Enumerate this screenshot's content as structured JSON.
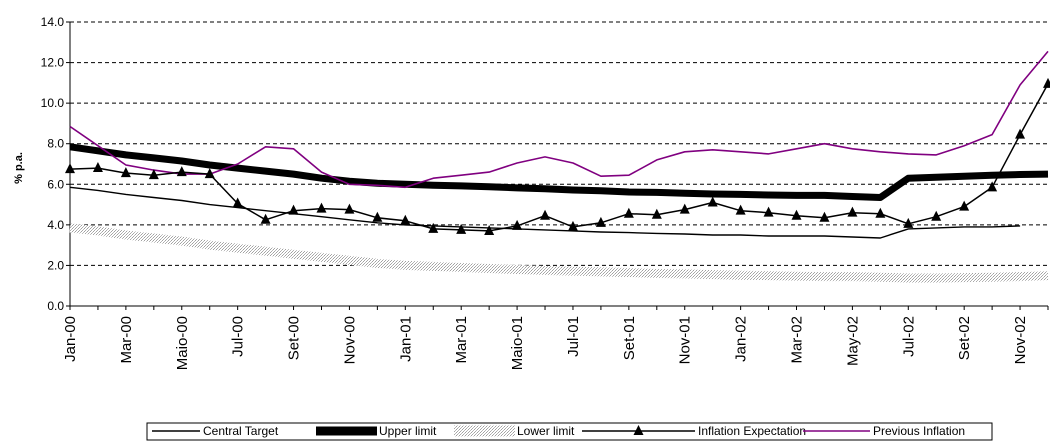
{
  "chart_data": {
    "type": "line",
    "title": "",
    "xlabel": "",
    "ylabel": "% p.a.",
    "ylim": [
      0,
      14
    ],
    "yticks": [
      "0.0",
      "2.0",
      "4.0",
      "6.0",
      "8.0",
      "10.0",
      "12.0",
      "14.0"
    ],
    "grid": "horizontal-dashed",
    "legend_position": "bottom",
    "x": [
      "Jan-00",
      "Feb-00",
      "Mar-00",
      "Abr-00",
      "Maio-00",
      "Jun-00",
      "Jul-00",
      "Ago-00",
      "Set-00",
      "Out-00",
      "Nov-00",
      "Dez-00",
      "Jan-01",
      "Feb-01",
      "Mar-01",
      "Abr-01",
      "Maio-01",
      "Jun-01",
      "Jul-01",
      "Ago-01",
      "Set-01",
      "Out-01",
      "Nov-01",
      "Dez-01",
      "Jan-02",
      "Feb-02",
      "Mar-02",
      "Abr-02",
      "May-02",
      "Jun-02",
      "Jul-02",
      "Ago-02",
      "Set-02",
      "Out-02",
      "Nov-02",
      "Dez-02"
    ],
    "x_tick_labels": [
      "Jan-00",
      "Mar-00",
      "Maio-00",
      "Jul-00",
      "Set-00",
      "Nov-00",
      "Jan-01",
      "Mar-01",
      "Maio-01",
      "Jul-01",
      "Set-01",
      "Nov-01",
      "Jan-02",
      "Mar-02",
      "May-02",
      "Jul-02",
      "Set-02",
      "Nov-02"
    ],
    "series": [
      {
        "name": "Central Target",
        "color": "#000000",
        "style": "thin",
        "values": [
          5.85,
          5.7,
          5.5,
          5.35,
          5.2,
          5.0,
          4.85,
          4.7,
          4.55,
          4.4,
          4.25,
          4.1,
          4.0,
          3.95,
          3.9,
          3.85,
          3.8,
          3.75,
          3.7,
          3.65,
          3.62,
          3.58,
          3.55,
          3.5,
          3.5,
          3.45,
          3.45,
          3.45,
          3.4,
          3.35,
          3.8,
          3.85,
          3.9,
          3.9,
          3.95,
          null
        ]
      },
      {
        "name": "Upper limit",
        "color": "#000000",
        "style": "thick",
        "values": [
          7.85,
          7.65,
          7.45,
          7.3,
          7.15,
          6.95,
          6.8,
          6.65,
          6.5,
          6.3,
          6.15,
          6.05,
          6.0,
          5.95,
          5.92,
          5.88,
          5.82,
          5.78,
          5.72,
          5.68,
          5.62,
          5.6,
          5.56,
          5.52,
          5.5,
          5.47,
          5.45,
          5.45,
          5.4,
          5.35,
          6.3,
          6.35,
          6.4,
          6.45,
          6.48,
          6.5
        ]
      },
      {
        "name": "Lower limit",
        "color": "#c8c8c8",
        "style": "hatched",
        "values": [
          3.85,
          3.7,
          3.5,
          3.35,
          3.2,
          3.0,
          2.85,
          2.7,
          2.55,
          2.4,
          2.25,
          2.1,
          2.0,
          1.95,
          1.9,
          1.85,
          1.8,
          1.75,
          1.72,
          1.68,
          1.65,
          1.6,
          1.58,
          1.55,
          1.52,
          1.5,
          1.47,
          1.45,
          1.45,
          1.42,
          1.38,
          1.38,
          1.4,
          1.42,
          1.45,
          1.5
        ]
      },
      {
        "name": "Inflation Expectation",
        "color": "#000000",
        "style": "triangle-markers",
        "values": [
          6.75,
          6.8,
          6.55,
          6.45,
          6.6,
          6.5,
          5.05,
          4.25,
          4.7,
          4.8,
          4.75,
          4.35,
          4.2,
          3.8,
          3.75,
          3.7,
          3.95,
          4.45,
          3.9,
          4.1,
          4.55,
          4.5,
          4.75,
          5.1,
          4.7,
          4.6,
          4.45,
          4.35,
          4.6,
          4.55,
          4.05,
          4.4,
          4.9,
          5.85,
          8.45,
          10.95
        ]
      },
      {
        "name": "Previous Inflation",
        "color": "#800080",
        "style": "thin",
        "values": [
          8.85,
          7.9,
          6.95,
          6.7,
          6.5,
          6.5,
          7.0,
          7.85,
          7.75,
          6.6,
          6.0,
          5.95,
          5.85,
          6.3,
          6.45,
          6.6,
          7.05,
          7.35,
          7.05,
          6.4,
          6.45,
          7.2,
          7.6,
          7.7,
          7.6,
          7.5,
          7.75,
          8.0,
          7.75,
          7.6,
          7.5,
          7.45,
          7.9,
          8.45,
          10.9,
          12.55
        ]
      }
    ]
  }
}
